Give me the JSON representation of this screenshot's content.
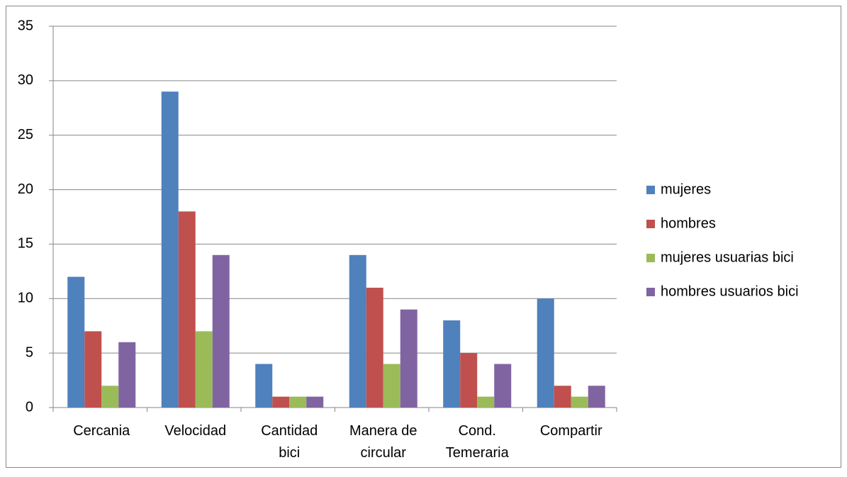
{
  "chart_data": {
    "type": "bar",
    "categories": [
      "Cercania",
      "Velocidad",
      "Cantidad bici",
      "Manera de circular",
      "Cond. Temeraria",
      "Compartir"
    ],
    "series": [
      {
        "name": "mujeres",
        "color": "#4f81bd",
        "values": [
          12,
          29,
          4,
          14,
          8,
          10
        ]
      },
      {
        "name": "hombres",
        "color": "#c0504d",
        "values": [
          7,
          18,
          1,
          11,
          5,
          2
        ]
      },
      {
        "name": "mujeres usuarias bici",
        "color": "#9bbb59",
        "values": [
          2,
          7,
          1,
          4,
          1,
          1
        ]
      },
      {
        "name": "hombres usuarios bici",
        "color": "#8064a2",
        "values": [
          6,
          14,
          1,
          9,
          4,
          2
        ]
      }
    ],
    "ylim": [
      0,
      35
    ],
    "yticks": [
      0,
      5,
      10,
      15,
      20,
      25,
      30,
      35
    ],
    "grid": true,
    "legend": "right"
  }
}
